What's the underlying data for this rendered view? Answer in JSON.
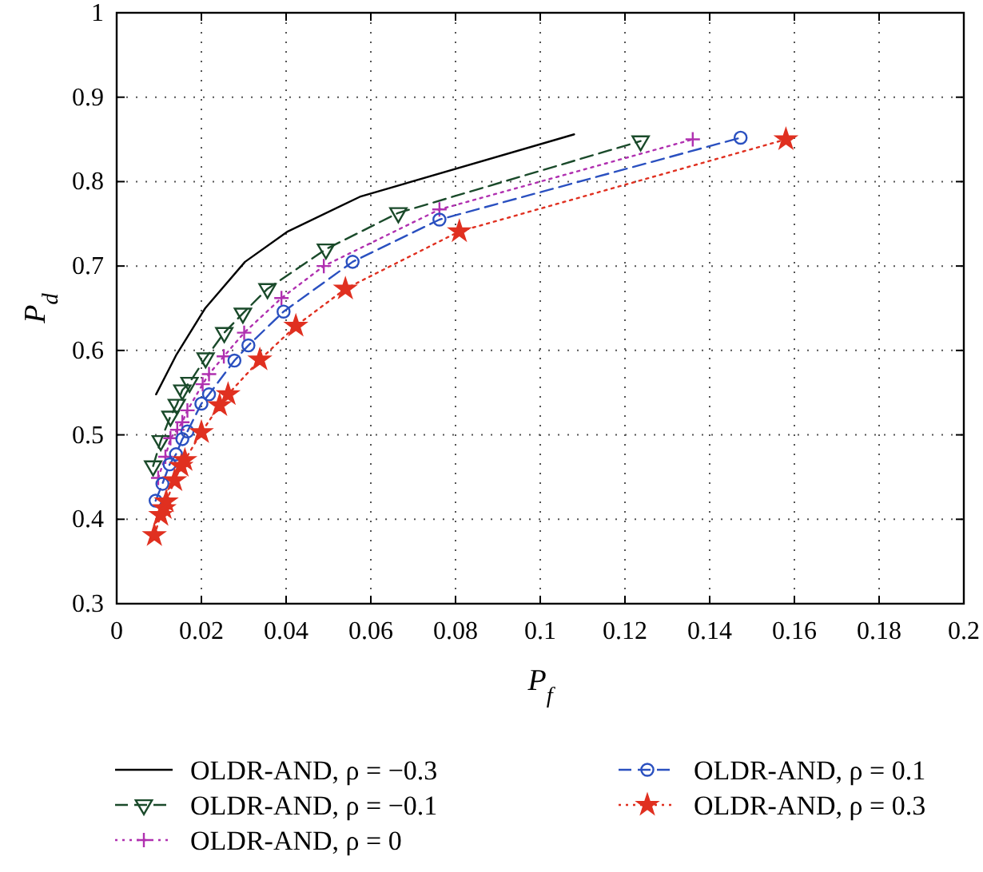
{
  "chart_data": {
    "type": "line",
    "xlabel": "P$_{f}$",
    "ylabel": "P$_{d}$",
    "xlim": [
      0,
      0.2
    ],
    "ylim": [
      0.3,
      1
    ],
    "xticks": [
      0,
      0.02,
      0.04,
      0.06,
      0.08,
      0.1,
      0.12,
      0.14,
      0.16,
      0.18,
      0.2
    ],
    "yticks": [
      0.3,
      0.4,
      0.5,
      0.6,
      0.7,
      0.8,
      0.9,
      1
    ],
    "grid": true,
    "legend": "bottom",
    "series": [
      {
        "name": "OLDR-AND, ρ = −0.3",
        "color": "#000000",
        "line_style": "solid",
        "marker": "none",
        "x": [
          0.0093,
          0.014,
          0.0209,
          0.0303,
          0.0404,
          0.0574,
          0.108
        ],
        "values": [
          0.548,
          0.594,
          0.65,
          0.705,
          0.741,
          0.782,
          0.856
        ]
      },
      {
        "name": "OLDR-AND, ρ = −0.1",
        "color": "#1a4a2a",
        "line_style": "dashed",
        "marker": "triangle",
        "x": [
          0.0086,
          0.0104,
          0.0127,
          0.0142,
          0.0155,
          0.0172,
          0.021,
          0.0254,
          0.0298,
          0.0356,
          0.0494,
          0.0665,
          0.1237
        ],
        "values": [
          0.463,
          0.493,
          0.522,
          0.536,
          0.553,
          0.562,
          0.591,
          0.621,
          0.644,
          0.673,
          0.72,
          0.763,
          0.848
        ]
      },
      {
        "name": "OLDR-AND, ρ = 0",
        "color": "#b030b0",
        "line_style": "dotted",
        "marker": "cross",
        "x": [
          0.0098,
          0.0115,
          0.0127,
          0.0143,
          0.0155,
          0.0167,
          0.0203,
          0.0218,
          0.0253,
          0.0301,
          0.0389,
          0.0489,
          0.0762,
          0.136
        ],
        "values": [
          0.449,
          0.474,
          0.496,
          0.506,
          0.515,
          0.529,
          0.56,
          0.572,
          0.593,
          0.621,
          0.662,
          0.7,
          0.767,
          0.85
        ]
      },
      {
        "name": "OLDR-AND, ρ = 0.1",
        "color": "#2a50c0",
        "line_style": "dashed",
        "marker": "circle",
        "x": [
          0.0092,
          0.0108,
          0.0125,
          0.014,
          0.0155,
          0.0167,
          0.02,
          0.0218,
          0.0278,
          0.0311,
          0.0394,
          0.0557,
          0.0762,
          0.1473
        ],
        "values": [
          0.422,
          0.442,
          0.465,
          0.477,
          0.495,
          0.504,
          0.537,
          0.548,
          0.588,
          0.606,
          0.646,
          0.705,
          0.755,
          0.852
        ]
      },
      {
        "name": "OLDR-AND, ρ = 0.3",
        "color": "#e03020",
        "line_style": "dotted",
        "marker": "star",
        "x": [
          0.0089,
          0.0104,
          0.0112,
          0.0117,
          0.0137,
          0.0152,
          0.0161,
          0.02,
          0.0243,
          0.0263,
          0.0338,
          0.0423,
          0.054,
          0.0809,
          0.158
        ],
        "values": [
          0.381,
          0.405,
          0.413,
          0.421,
          0.446,
          0.463,
          0.47,
          0.503,
          0.535,
          0.548,
          0.589,
          0.629,
          0.673,
          0.741,
          0.85
        ]
      }
    ]
  }
}
